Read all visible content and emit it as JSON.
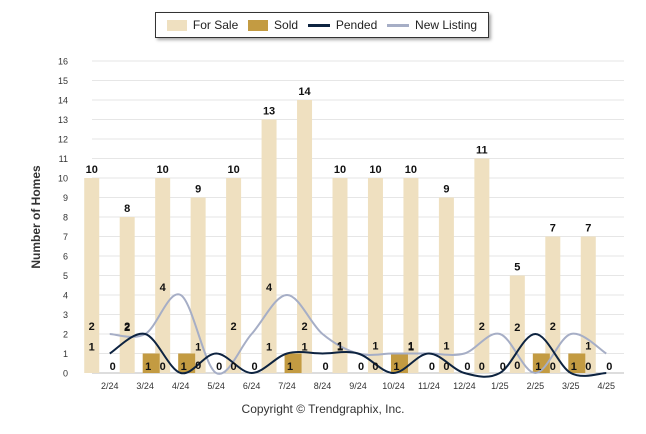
{
  "legend": {
    "items": [
      {
        "label": "For Sale",
        "kind": "box",
        "color": "#efe0c0"
      },
      {
        "label": "Sold",
        "kind": "box",
        "color": "#c39b42"
      },
      {
        "label": "Pended",
        "kind": "line",
        "color": "#0d2340"
      },
      {
        "label": "New Listing",
        "kind": "line",
        "color": "#a6aec6"
      }
    ]
  },
  "footer": {
    "copyright": "Copyright © Trendgraphix, Inc."
  },
  "chart_data": {
    "type": "bar",
    "ylabel": "Number of Homes",
    "xlabel": "",
    "ylim": [
      0,
      16
    ],
    "yticks": [
      0,
      1,
      2,
      3,
      4,
      5,
      6,
      7,
      8,
      9,
      10,
      11,
      12,
      13,
      14,
      15,
      16
    ],
    "grid": true,
    "legend_position": "top-center",
    "categories": [
      "2/24",
      "3/24",
      "4/24",
      "5/24",
      "6/24",
      "7/24",
      "8/24",
      "9/24",
      "10/24",
      "11/24",
      "12/24",
      "1/25",
      "2/25",
      "3/25",
      "4/25"
    ],
    "series": [
      {
        "name": "For Sale",
        "type": "bar",
        "color": "#efe0c0",
        "values": [
          10,
          8,
          10,
          9,
          10,
          13,
          14,
          10,
          10,
          10,
          9,
          11,
          5,
          7,
          7
        ]
      },
      {
        "name": "Sold",
        "type": "bar",
        "color": "#c39b42",
        "values": [
          0,
          1,
          1,
          0,
          0,
          1,
          0,
          0,
          1,
          0,
          0,
          0,
          1,
          1,
          0
        ]
      },
      {
        "name": "Pended",
        "type": "line",
        "color": "#0d2340",
        "values": [
          1,
          2,
          0,
          1,
          0,
          1,
          1,
          1,
          0,
          1,
          0,
          0,
          2,
          0,
          0
        ]
      },
      {
        "name": "New Listing",
        "type": "line",
        "color": "#a6aec6",
        "values": [
          2,
          2,
          4,
          0,
          2,
          4,
          2,
          1,
          1,
          1,
          1,
          2,
          0,
          2,
          1
        ]
      }
    ]
  }
}
